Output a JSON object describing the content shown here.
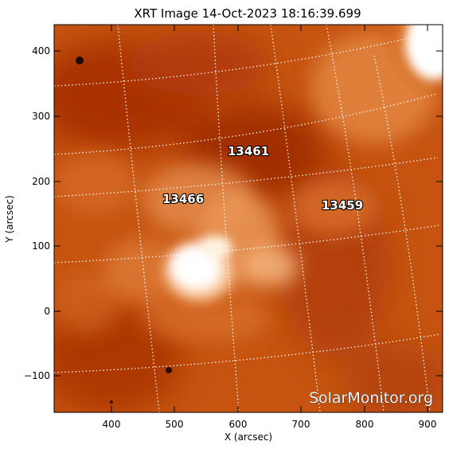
{
  "title": "XRT Image 14-Oct-2023 18:16:39.699",
  "xlabel": "X (arcsec)",
  "ylabel": "Y (arcsec)",
  "x_ticks": [
    "400",
    "500",
    "600",
    "700",
    "800",
    "900"
  ],
  "y_ticks": [
    "400",
    "300",
    "200",
    "100",
    "0",
    "−100"
  ],
  "regions": [
    "13461",
    "13466",
    "13459"
  ],
  "watermark": "SolarMonitor.org",
  "colors": {
    "background": "#ffffff",
    "image_dark": "#9c2a04",
    "image_mid": "#c85410",
    "image_bright": "#ffffff",
    "grid": "#ffffff"
  }
}
